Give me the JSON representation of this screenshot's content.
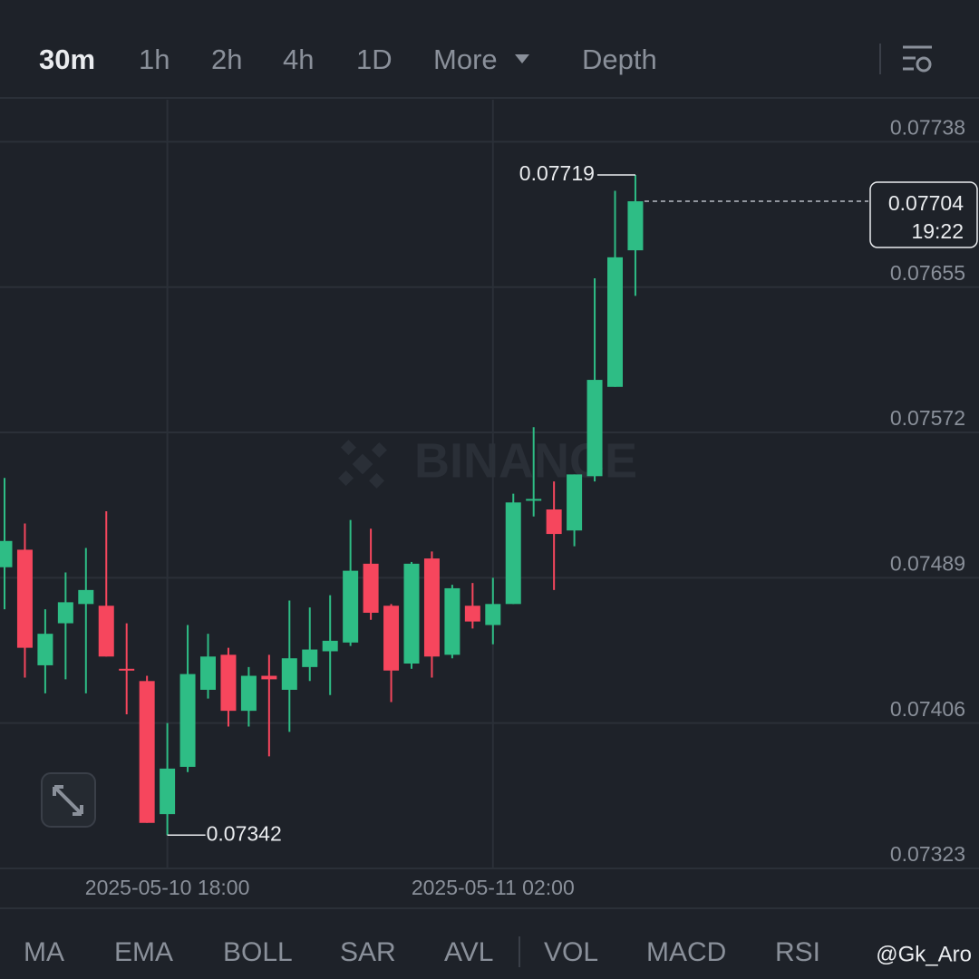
{
  "tabs": [
    "30m",
    "1h",
    "2h",
    "4h",
    "1D",
    "More",
    "Depth"
  ],
  "indicators": [
    "MA",
    "EMA",
    "BOLL",
    "SAR",
    "AVL",
    "VOL",
    "MACD",
    "RSI"
  ],
  "watermark": "BINANCE",
  "user": "@Gk_Aro",
  "chart_data": {
    "type": "candlestick",
    "up_color": "#2ebd85",
    "down_color": "#f6465d",
    "categories": [
      null,
      null,
      null,
      null,
      null,
      null,
      null,
      null,
      "2025-05-10 18:00",
      null,
      null,
      null,
      null,
      null,
      null,
      null,
      null,
      null,
      null,
      null,
      null,
      null,
      null,
      null,
      "2025-05-11 02:00",
      null,
      null,
      null,
      null,
      null,
      null,
      null
    ],
    "open": [
      0.07495,
      0.07505,
      0.07439,
      0.07463,
      0.07474,
      0.07473,
      0.07437,
      0.0743,
      0.07354,
      0.07381,
      0.07425,
      0.07445,
      0.07413,
      0.07433,
      0.07425,
      0.07438,
      0.07447,
      0.07452,
      0.07497,
      0.07473,
      0.0744,
      0.075,
      0.07445,
      0.07473,
      0.07462,
      0.07474,
      0.07533,
      0.07528,
      0.07516,
      0.07547,
      0.07598,
      0.07676
    ],
    "high": [
      0.07546,
      0.0752,
      0.07471,
      0.07492,
      0.07506,
      0.07527,
      0.07463,
      0.07433,
      0.07406,
      0.07462,
      0.07457,
      0.07449,
      0.07438,
      0.07445,
      0.07476,
      0.07472,
      0.07479,
      0.07522,
      0.07517,
      0.07474,
      0.07498,
      0.07504,
      0.07485,
      0.07486,
      0.07489,
      0.07537,
      0.07575,
      0.07544,
      0.07548,
      0.0766,
      0.0771,
      0.07719
    ],
    "low": [
      0.07471,
      0.07432,
      0.07423,
      0.07431,
      0.07423,
      0.07444,
      0.07411,
      0.07349,
      0.07342,
      0.07378,
      0.0742,
      0.07404,
      0.07404,
      0.07387,
      0.07401,
      0.0743,
      0.07422,
      0.0745,
      0.07465,
      0.07418,
      0.07437,
      0.07432,
      0.07443,
      0.0746,
      0.07451,
      0.07474,
      0.07524,
      0.07482,
      0.07507,
      0.07544,
      0.07598,
      0.0765
    ],
    "close": [
      0.0751,
      0.07449,
      0.07457,
      0.07475,
      0.07482,
      0.07444,
      0.07436,
      0.07349,
      0.0738,
      0.07434,
      0.07444,
      0.07413,
      0.07433,
      0.07431,
      0.07443,
      0.07448,
      0.07453,
      0.07493,
      0.07469,
      0.07436,
      0.07497,
      0.07444,
      0.07483,
      0.07464,
      0.07474,
      0.07532,
      0.07534,
      0.07514,
      0.07548,
      0.07602,
      0.07672,
      0.07704
    ],
    "countdown": "19:22",
    "ylim": [
      0.07323,
      0.07762
    ],
    "yticks": [
      0.07323,
      0.07406,
      0.07489,
      0.07572,
      0.07655,
      0.07738
    ],
    "grid": true
  }
}
